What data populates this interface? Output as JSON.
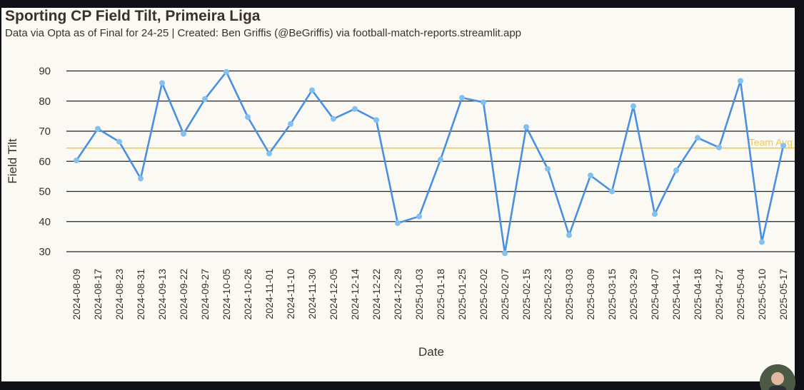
{
  "title": "Sporting CP Field Tilt, Primeira Liga",
  "subtitle": "Data via Opta as of Final for 24-25 | Created: Ben Griffis (@BeGriffis) via football-match-reports.streamlit.app",
  "colors": {
    "line": "#4a90e2",
    "marker": "#82c1f0",
    "average": "#f2c94c",
    "gridline": "#222222",
    "text": "#3a3228",
    "background": "#fbf9f4"
  },
  "chart_data": {
    "type": "line",
    "title": "Sporting CP Field Tilt, Primeira Liga",
    "subtitle": "Data via Opta as of Final for 24-25 | Created: Ben Griffis (@BeGriffis) via football-match-reports.streamlit.app",
    "xlabel": "Date",
    "ylabel": "Field Tilt",
    "ylim": [
      28,
      90
    ],
    "yticks": [
      30,
      40,
      50,
      60,
      70,
      80,
      90
    ],
    "grid": "horizontal",
    "x": [
      "2024-08-09",
      "2024-08-17",
      "2024-08-23",
      "2024-08-31",
      "2024-09-13",
      "2024-09-22",
      "2024-09-27",
      "2024-10-05",
      "2024-10-26",
      "2024-11-01",
      "2024-11-10",
      "2024-11-30",
      "2024-12-05",
      "2024-12-14",
      "2024-12-22",
      "2024-12-29",
      "2025-01-03",
      "2025-01-18",
      "2025-01-25",
      "2025-02-02",
      "2025-02-07",
      "2025-02-15",
      "2025-02-23",
      "2025-03-03",
      "2025-03-09",
      "2025-03-15",
      "2025-03-29",
      "2025-04-07",
      "2025-04-12",
      "2025-04-18",
      "2025-04-27",
      "2025-05-04",
      "2025-05-10",
      "2025-05-17"
    ],
    "series": [
      {
        "values": [
          60.3,
          70.8,
          66.5,
          54.3,
          86.0,
          69.1,
          80.7,
          89.7,
          74.7,
          62.6,
          72.4,
          83.6,
          74.1,
          77.4,
          73.7,
          39.5,
          41.7,
          60.6,
          81.1,
          79.6,
          29.5,
          71.4,
          57.5,
          35.5,
          55.3,
          50.0,
          78.3,
          42.5,
          57.0,
          67.8,
          64.6,
          86.7,
          33.2,
          65.2
        ]
      }
    ],
    "reference_line": {
      "label": "Team Avg",
      "value": 64.4
    }
  }
}
